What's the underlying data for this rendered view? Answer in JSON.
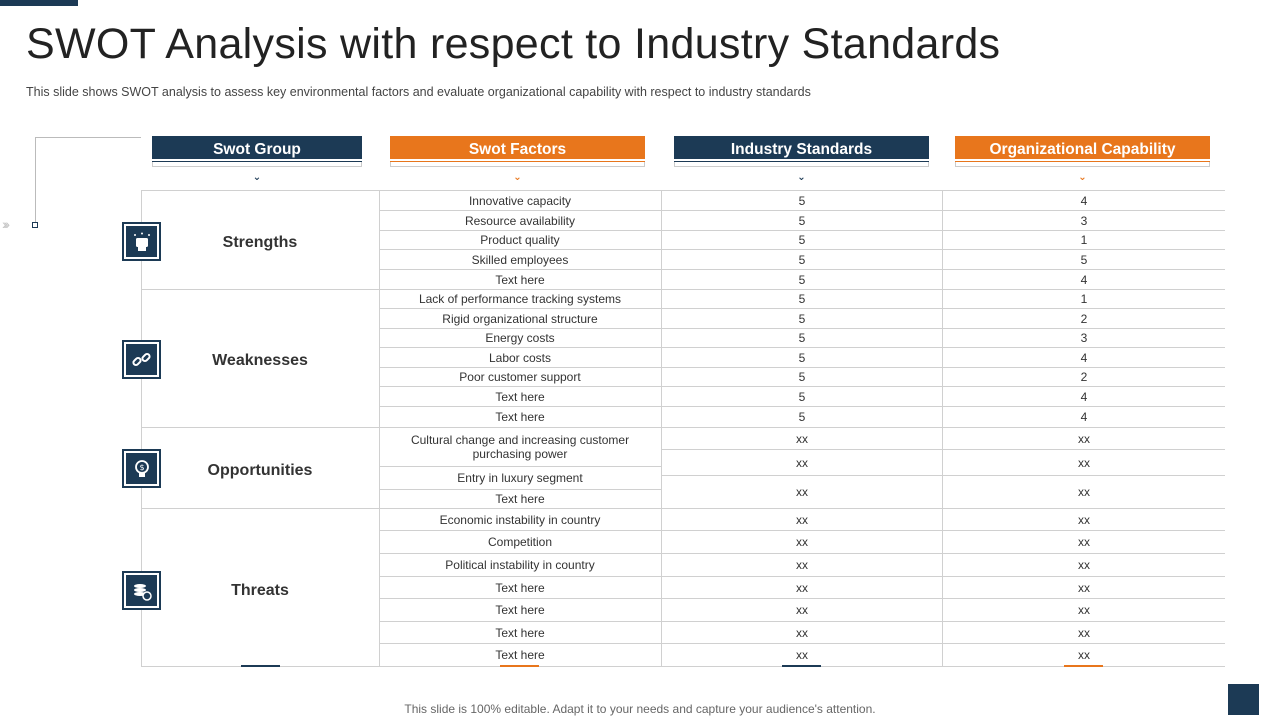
{
  "title": "SWOT Analysis with respect to Industry Standards",
  "subtitle": "This slide shows SWOT analysis to assess key environmental  factors and evaluate  organizational  capability with respect to industry standards",
  "headers": {
    "group": "Swot Group",
    "factors": "Swot Factors",
    "industry": "Industry Standards",
    "capability": "Organizational Capability"
  },
  "groups": [
    {
      "name": "Strengths",
      "icon": "fist-icon"
    },
    {
      "name": "Weaknesses",
      "icon": "broken-link-icon"
    },
    {
      "name": "Opportunities",
      "icon": "bulb-dollar-icon"
    },
    {
      "name": "Threats",
      "icon": "coins-clock-icon"
    }
  ],
  "rows": [
    {
      "factor": "Innovative capacity",
      "industry": "5",
      "capability": "4"
    },
    {
      "factor": "Resource availability",
      "industry": "5",
      "capability": "3"
    },
    {
      "factor": "Product quality",
      "industry": "5",
      "capability": "1"
    },
    {
      "factor": "Skilled employees",
      "industry": "5",
      "capability": "5"
    },
    {
      "factor": "Text here",
      "industry": "5",
      "capability": "4"
    },
    {
      "factor": "Lack of performance tracking systems",
      "industry": "5",
      "capability": "1"
    },
    {
      "factor": "Rigid organizational structure",
      "industry": "5",
      "capability": "2"
    },
    {
      "factor": "Energy costs",
      "industry": "5",
      "capability": "3"
    },
    {
      "factor": "Labor costs",
      "industry": "5",
      "capability": "4"
    },
    {
      "factor": "Poor customer support",
      "industry": "5",
      "capability": "2"
    },
    {
      "factor": "Text here",
      "industry": "5",
      "capability": "4"
    },
    {
      "factor": "Text here",
      "industry": "5",
      "capability": "4"
    },
    {
      "factor": "Cultural change and increasing customer purchasing power",
      "industry": "xx",
      "capability": "xx"
    },
    {
      "factor": "Entry in luxury segment",
      "industry": "xx",
      "capability": "xx"
    },
    {
      "factor": "Text here",
      "industry": "xx",
      "capability": "xx"
    },
    {
      "factor": "Economic instability in country",
      "industry": "xx",
      "capability": "xx"
    },
    {
      "factor": "Competition",
      "industry": "xx",
      "capability": "xx"
    },
    {
      "factor": "Political instability in country",
      "industry": "xx",
      "capability": "xx"
    },
    {
      "factor": "Text here",
      "industry": "xx",
      "capability": "xx"
    },
    {
      "factor": "Text here",
      "industry": "xx",
      "capability": "xx"
    },
    {
      "factor": "Text here",
      "industry": "xx",
      "capability": "xx"
    },
    {
      "factor": "Text here",
      "industry": "xx",
      "capability": "xx"
    }
  ],
  "footer": "This slide is 100% editable. Adapt it to your needs and capture your audience's attention.",
  "colors": {
    "navy": "#1c3a55",
    "orange": "#e8761c"
  }
}
